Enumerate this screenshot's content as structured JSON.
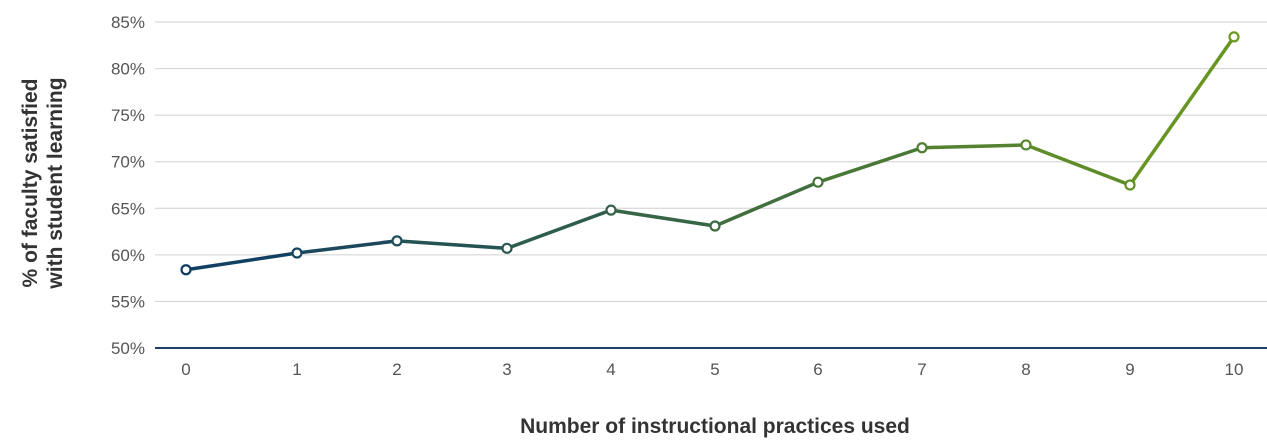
{
  "chart_data": {
    "type": "line",
    "x": [
      0,
      1,
      2,
      3,
      4,
      5,
      6,
      7,
      8,
      9,
      10
    ],
    "categories": [
      "0",
      "1",
      "2",
      "3",
      "4",
      "5",
      "6",
      "7",
      "8",
      "9",
      "10"
    ],
    "series": [
      {
        "values": [
          58.4,
          60.2,
          61.5,
          60.7,
          64.8,
          63.1,
          67.8,
          71.5,
          71.8,
          67.5,
          83.4
        ]
      }
    ],
    "ylim": [
      50,
      85
    ],
    "yticks": [
      50,
      55,
      60,
      65,
      70,
      75,
      80,
      85
    ],
    "ytick_labels": [
      "50%",
      "55%",
      "60%",
      "65%",
      "70%",
      "75%",
      "80%",
      "85%"
    ],
    "xlabel": "Number of instructional practices used",
    "ylabel_lines": [
      "% of faculty satisfied",
      "with student learning"
    ],
    "grid": true,
    "legend": "none",
    "colors": {
      "line_start": "#0d3b66",
      "line_end": "#6b9a1e",
      "gridline": "#d0d0d0",
      "baseline": "#1f3f66",
      "marker_fill": "#ffffff"
    }
  }
}
